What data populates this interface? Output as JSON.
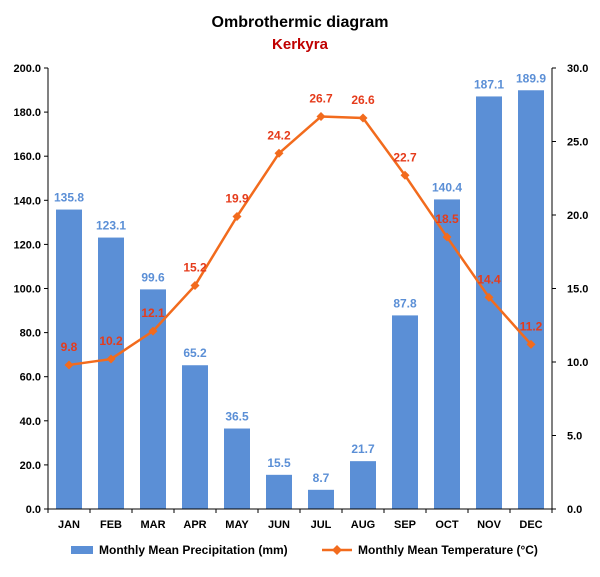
{
  "chart_data": {
    "type": "bar",
    "title": "Ombrothermic diagram",
    "subtitle": "Kerkyra",
    "categories": [
      "JAN",
      "FEB",
      "MAR",
      "APR",
      "MAY",
      "JUN",
      "JUL",
      "AUG",
      "SEP",
      "OCT",
      "NOV",
      "DEC"
    ],
    "series": [
      {
        "name": "Monthly Mean Precipitation (mm)",
        "type": "bar",
        "axis": "left",
        "values": [
          135.8,
          123.1,
          99.6,
          65.2,
          36.5,
          15.5,
          8.7,
          21.7,
          87.8,
          140.4,
          187.1,
          189.9
        ],
        "labels": [
          "135.8",
          "123.1",
          "99.6",
          "65.2",
          "36.5",
          "15.5",
          "8.7",
          "21.7",
          "87.8",
          "140.4",
          "187.1",
          "189.9"
        ],
        "color": "#5b8fd6"
      },
      {
        "name": "Monthly Mean Temperature (°C)",
        "type": "line",
        "axis": "right",
        "values": [
          9.8,
          10.2,
          12.1,
          15.2,
          19.9,
          24.2,
          26.7,
          26.6,
          22.7,
          18.5,
          14.4,
          11.2
        ],
        "labels": [
          "9.8",
          "10.2",
          "12.1",
          "15.2",
          "19.9",
          "24.2",
          "26.7",
          "26.6",
          "22.7",
          "18.5",
          "14.4",
          "11.2"
        ],
        "color": "#f26b1d"
      }
    ],
    "y_left": {
      "range": [
        0,
        200
      ],
      "ticks": [
        "0.0",
        "20.0",
        "40.0",
        "60.0",
        "80.0",
        "100.0",
        "120.0",
        "140.0",
        "160.0",
        "180.0",
        "200.0"
      ]
    },
    "y_right": {
      "range": [
        0,
        30
      ],
      "ticks": [
        "0.0",
        "5.0",
        "10.0",
        "15.0",
        "20.0",
        "25.0",
        "30.0"
      ]
    },
    "grid": false,
    "legend": "bottom",
    "colors": {
      "subtitle": "#c00000",
      "bar_label": "#5b8fd6",
      "line_label": "#e53b1b"
    }
  }
}
